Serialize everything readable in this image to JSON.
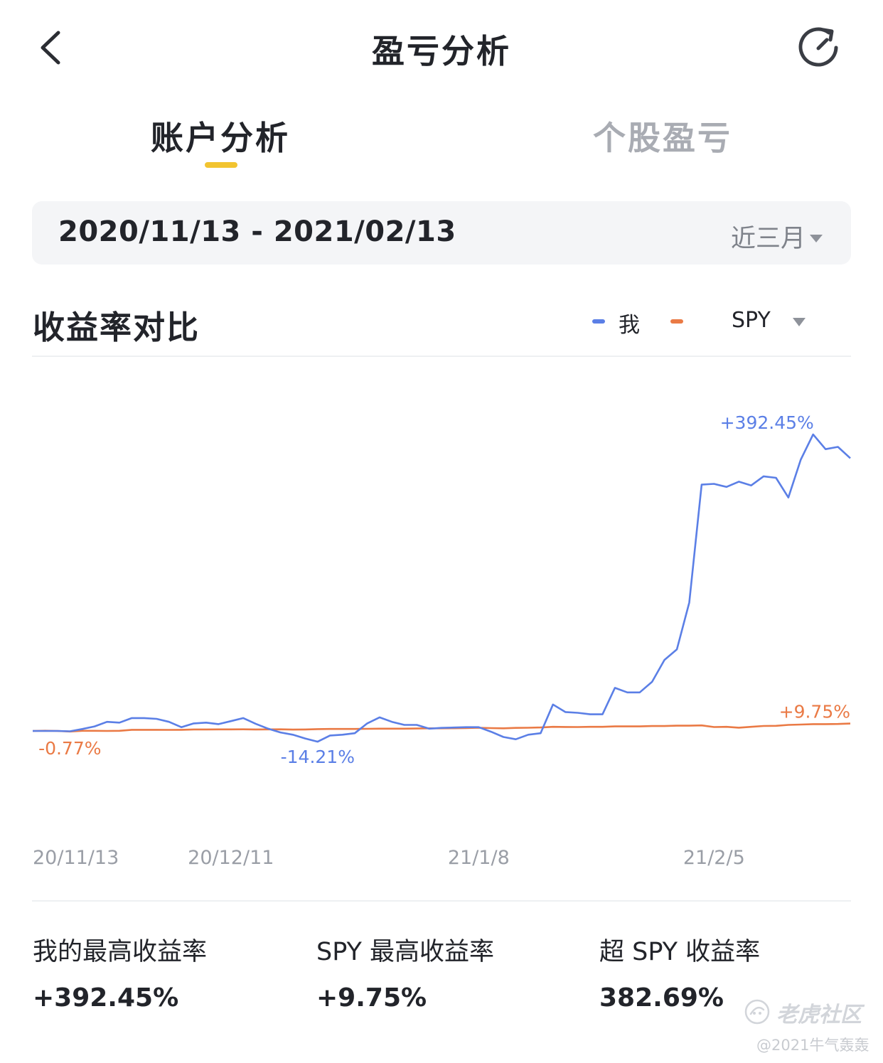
{
  "nav": {
    "title": "盈亏分析",
    "back_icon": "chevron-left-icon",
    "refresh_icon": "refresh-icon"
  },
  "tabs": [
    {
      "label": "账户分析",
      "active": true
    },
    {
      "label": "个股盈亏",
      "active": false
    }
  ],
  "date_filter": {
    "range": "2020/11/13 - 2021/02/13",
    "period": "近三月"
  },
  "section": {
    "title": "收益率对比"
  },
  "legend": {
    "me": "我",
    "benchmark": "SPY"
  },
  "colors": {
    "me": "#5b7fe6",
    "spy": "#ea7a45",
    "accent": "#f2c430"
  },
  "chart_data": {
    "type": "line",
    "title": "",
    "xlabel": "",
    "ylabel": "",
    "x_tick_labels": [
      "20/11/13",
      "20/12/11",
      "21/1/8",
      "21/2/5"
    ],
    "x_tick_index": [
      0,
      16,
      36,
      55
    ],
    "ylim": [
      -60,
      480
    ],
    "grid": false,
    "series": [
      {
        "name": "我",
        "color": "#5b7fe6",
        "values": [
          0,
          0,
          0,
          -0.5,
          2.5,
          6,
          12,
          11,
          17,
          17,
          16,
          12,
          5,
          10,
          11,
          9,
          13,
          17,
          9.5,
          3,
          -2,
          -5,
          -10,
          -14.21,
          -6,
          -5,
          -3,
          10,
          18,
          12,
          8,
          8,
          3,
          4,
          4.5,
          5,
          5,
          -1,
          -8,
          -11,
          -5,
          -3,
          35,
          25,
          24,
          22,
          22,
          57,
          51,
          51,
          65,
          94,
          108,
          170,
          326,
          327,
          323,
          330,
          325,
          337,
          335,
          309,
          359,
          392.45,
          373,
          376,
          361
        ]
      },
      {
        "name": "SPY",
        "color": "#ea7a45",
        "values": [
          0,
          0.3,
          0,
          -0.77,
          0.2,
          0.2,
          0,
          0.2,
          1.5,
          1.5,
          1.5,
          1.4,
          1.5,
          2,
          2,
          2.1,
          2.1,
          2.2,
          2,
          2.1,
          2.2,
          1.8,
          2,
          2.4,
          2.6,
          2.6,
          2.6,
          2.8,
          3,
          3,
          3,
          3.2,
          3.5,
          3.5,
          3.6,
          3.8,
          4.2,
          3.8,
          3.5,
          4,
          4.2,
          4.6,
          5.5,
          5.3,
          5.2,
          5.5,
          5.5,
          6,
          6,
          6,
          6.5,
          6.5,
          7,
          7,
          7.3,
          5.2,
          5.5,
          4.3,
          5.5,
          6.6,
          6.8,
          8,
          8.5,
          9,
          9,
          9.2,
          9.75
        ]
      }
    ],
    "annotations": [
      {
        "label": "+392.45%",
        "series": "我",
        "index": 63
      },
      {
        "label": "-14.21%",
        "series": "我",
        "index": 23
      },
      {
        "label": "-0.77%",
        "series": "SPY",
        "index": 3
      },
      {
        "label": "+9.75%",
        "series": "SPY",
        "index": 66
      }
    ]
  },
  "stats": [
    {
      "label": "我的最高收益率",
      "value": "+392.45%"
    },
    {
      "label": "SPY 最高收益率",
      "value": "+9.75%"
    },
    {
      "label": "超 SPY 收益率",
      "value": "382.69%"
    }
  ],
  "watermark": {
    "logo_icon": "tiger-logo-icon",
    "brand": "老虎社区",
    "user": "@2021牛气轰轰"
  }
}
